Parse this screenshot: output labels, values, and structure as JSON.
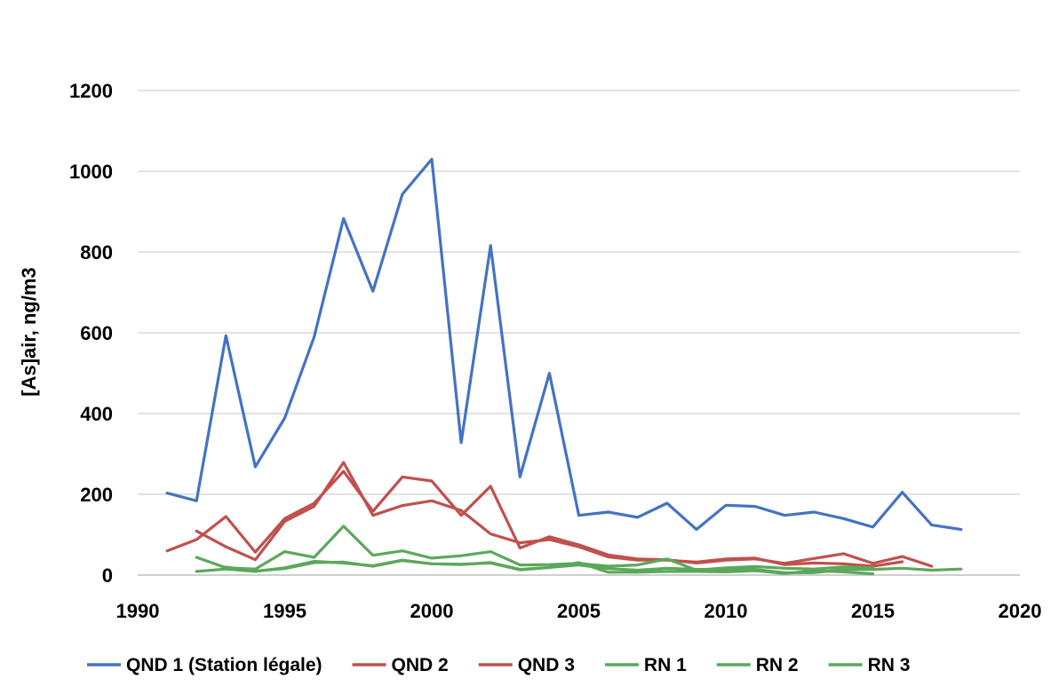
{
  "chart_data": {
    "type": "line",
    "title": "",
    "xlabel": "",
    "ylabel": "[As]air, ng/m3",
    "xlim": [
      1990,
      2020
    ],
    "ylim": [
      0,
      1200
    ],
    "x_ticks": [
      1990,
      1995,
      2000,
      2005,
      2010,
      2015,
      2020
    ],
    "y_ticks": [
      0,
      200,
      400,
      600,
      800,
      1000,
      1200
    ],
    "grid": "horizontal",
    "legend_position": "bottom",
    "series": [
      {
        "name": "QND 1 (Station légale)",
        "color": "#4472C4",
        "x": [
          1991,
          1992,
          1993,
          1994,
          1995,
          1996,
          1997,
          1998,
          1999,
          2000,
          2001,
          2002,
          2003,
          2004,
          2005,
          2006,
          2007,
          2008,
          2009,
          2010,
          2011,
          2012,
          2013,
          2014,
          2015,
          2016,
          2017,
          2018
        ],
        "values": [
          203,
          184,
          593,
          268,
          389,
          590,
          883,
          703,
          943,
          1030,
          328,
          816,
          243,
          500,
          148,
          156,
          143,
          178,
          113,
          173,
          170,
          148,
          156,
          140,
          119,
          205,
          124,
          113
        ]
      },
      {
        "name": "QND 2",
        "color": "#C0504D",
        "x": [
          1991,
          1992,
          1993,
          1994,
          1995,
          1996,
          1997,
          1998,
          1999,
          2000,
          2001,
          2002,
          2003,
          2004,
          2005,
          2006,
          2007,
          2008,
          2009,
          2010,
          2011,
          2012,
          2013,
          2014,
          2015,
          2016,
          2017
        ],
        "values": [
          60,
          88,
          145,
          57,
          140,
          178,
          257,
          158,
          243,
          233,
          148,
          220,
          67,
          95,
          75,
          50,
          40,
          38,
          30,
          37,
          40,
          29,
          41,
          53,
          29,
          46,
          22
        ]
      },
      {
        "name": "QND 3",
        "color": "#C0504D",
        "x": [
          1992,
          1993,
          1994,
          1995,
          1996,
          1997,
          1998,
          1999,
          2000,
          2001,
          2002,
          2003,
          2004,
          2005,
          2006,
          2007,
          2008,
          2009,
          2010,
          2011,
          2012,
          2013,
          2014,
          2015,
          2016
        ],
        "values": [
          109,
          70,
          38,
          133,
          170,
          279,
          148,
          172,
          184,
          160,
          102,
          80,
          88,
          70,
          45,
          37,
          37,
          32,
          40,
          42,
          26,
          30,
          28,
          22,
          33
        ]
      },
      {
        "name": "RN 1",
        "color": "#5BA85B",
        "x": [
          1992,
          1993,
          1994,
          1995,
          1996,
          1997,
          1998,
          1999,
          2000,
          2001,
          2002,
          2003,
          2004,
          2005,
          2006,
          2007,
          2008,
          2009,
          2010,
          2011,
          2012,
          2013,
          2014,
          2015
        ],
        "values": [
          44,
          18,
          15,
          58,
          44,
          121,
          49,
          60,
          42,
          48,
          58,
          25,
          26,
          29,
          22,
          25,
          40,
          12,
          18,
          21,
          17,
          15,
          20,
          18
        ]
      },
      {
        "name": "RN 2",
        "color": "#5BA85B",
        "x": [
          1992,
          1993,
          1994,
          1995,
          1996,
          1997,
          1998,
          1999,
          2000,
          2001,
          2002,
          2003,
          2004,
          2005,
          2006,
          2007,
          2008,
          2009,
          2010,
          2011,
          2012,
          2013,
          2014,
          2015,
          2016,
          2017,
          2018
        ],
        "values": [
          9,
          15,
          9,
          18,
          34,
          30,
          23,
          37,
          28,
          26,
          31,
          14,
          19,
          25,
          16,
          12,
          17,
          14,
          14,
          14,
          6,
          6,
          14,
          14,
          17,
          12,
          15
        ]
      },
      {
        "name": "RN 3",
        "color": "#5BA85B",
        "x": [
          1993,
          1994,
          1995,
          1996,
          1997,
          1998,
          1999,
          2000,
          2001,
          2002,
          2003,
          2004,
          2005,
          2006,
          2007,
          2008,
          2009,
          2010,
          2011,
          2012,
          2013,
          2014,
          2015
        ],
        "values": [
          20,
          10,
          16,
          31,
          32,
          22,
          36,
          28,
          27,
          30,
          13,
          19,
          31,
          7,
          7,
          9,
          9,
          8,
          11,
          4,
          11,
          8,
          3
        ]
      }
    ]
  }
}
